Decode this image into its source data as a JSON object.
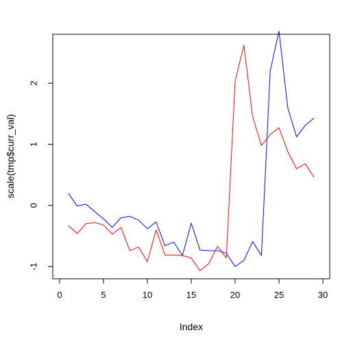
{
  "chart_data": {
    "type": "line",
    "title": "",
    "xlabel": "Index",
    "ylabel": "scale(tmp$curr_val)",
    "xlim": [
      0,
      30
    ],
    "ylim": [
      -1.2,
      2.8
    ],
    "x_ticks": [
      0,
      5,
      10,
      15,
      20,
      25,
      30
    ],
    "y_ticks": [
      -1,
      0,
      1,
      2
    ],
    "grid": false,
    "legend": "none",
    "x": [
      1,
      2,
      3,
      4,
      5,
      6,
      7,
      8,
      9,
      10,
      11,
      12,
      13,
      14,
      15,
      16,
      17,
      18,
      19,
      20,
      21,
      22,
      23,
      24,
      25,
      26,
      27,
      28,
      29
    ],
    "series": [
      {
        "color": "#0000ff",
        "values": [
          0.2,
          -0.01,
          0.02,
          -0.1,
          -0.22,
          -0.36,
          -0.2,
          -0.18,
          -0.24,
          -0.38,
          -0.27,
          -0.66,
          -0.6,
          -0.82,
          -0.29,
          -0.73,
          -0.74,
          -0.74,
          -0.78,
          -1.0,
          -0.9,
          -0.59,
          -0.82,
          2.2,
          2.85,
          1.6,
          1.12,
          1.31,
          1.43
        ]
      },
      {
        "color": "#ff0000",
        "values": [
          -0.33,
          -0.46,
          -0.3,
          -0.28,
          -0.32,
          -0.47,
          -0.36,
          -0.74,
          -0.68,
          -0.92,
          -0.4,
          -0.81,
          -0.81,
          -0.82,
          -0.86,
          -1.07,
          -0.95,
          -0.67,
          -0.86,
          2.03,
          2.62,
          1.45,
          0.98,
          1.16,
          1.27,
          0.88,
          0.6,
          0.68,
          0.46
        ]
      }
    ]
  }
}
